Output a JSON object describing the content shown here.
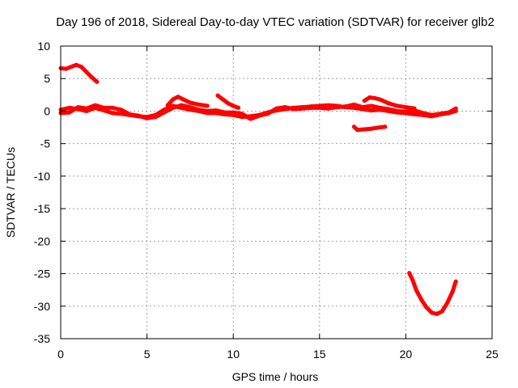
{
  "chart_data": {
    "type": "scatter",
    "title": "Day 196 of 2018, Sidereal Day-to-day VTEC variation (SDTVAR) for receiver glb2",
    "xlabel": "GPS time / hours",
    "ylabel": "SDTVAR / TECUs",
    "xlim": [
      0,
      25
    ],
    "ylim": [
      -35,
      10
    ],
    "xticks": [
      0,
      5,
      10,
      15,
      20,
      25
    ],
    "yticks": [
      -35,
      -30,
      -25,
      -20,
      -15,
      -10,
      -5,
      0,
      5,
      10
    ],
    "grid": true,
    "legend": "none",
    "color": "#ff0000",
    "series": [
      {
        "name": "trace-1",
        "points": [
          [
            0.0,
            6.6
          ],
          [
            0.3,
            6.5
          ],
          [
            0.6,
            6.8
          ],
          [
            0.9,
            7.1
          ],
          [
            1.2,
            6.8
          ],
          [
            1.5,
            6.0
          ],
          [
            1.8,
            5.2
          ],
          [
            2.1,
            4.5
          ]
        ]
      },
      {
        "name": "trace-2",
        "points": [
          [
            0.0,
            0.2
          ],
          [
            0.5,
            0.5
          ],
          [
            1.0,
            0.3
          ],
          [
            1.5,
            0.0
          ],
          [
            2.0,
            0.5
          ],
          [
            2.5,
            0.1
          ],
          [
            3.0,
            -0.3
          ],
          [
            3.5,
            -0.4
          ],
          [
            4.0,
            -0.6
          ],
          [
            4.5,
            -0.8
          ],
          [
            5.0,
            -0.9
          ],
          [
            5.5,
            -0.6
          ],
          [
            6.0,
            0.2
          ],
          [
            6.5,
            0.8
          ],
          [
            7.0,
            0.5
          ],
          [
            7.5,
            0.2
          ],
          [
            8.0,
            0.0
          ],
          [
            8.5,
            -0.3
          ],
          [
            9.0,
            -0.3
          ],
          [
            9.5,
            -0.5
          ],
          [
            10.0,
            -0.6
          ],
          [
            10.5,
            -0.9
          ],
          [
            11.0,
            -0.8
          ],
          [
            11.5,
            -0.6
          ],
          [
            12.0,
            -0.2
          ],
          [
            12.5,
            0.1
          ],
          [
            13.0,
            0.3
          ],
          [
            13.5,
            0.5
          ],
          [
            14.0,
            0.6
          ],
          [
            14.5,
            0.7
          ],
          [
            15.0,
            0.8
          ],
          [
            15.5,
            0.9
          ],
          [
            16.0,
            0.8
          ],
          [
            16.5,
            0.6
          ],
          [
            17.0,
            0.5
          ],
          [
            17.5,
            0.3
          ],
          [
            18.0,
            0.1
          ],
          [
            18.5,
            0.2
          ],
          [
            19.0,
            0.0
          ],
          [
            19.5,
            -0.2
          ],
          [
            20.0,
            -0.3
          ],
          [
            20.5,
            -0.5
          ],
          [
            21.0,
            -0.6
          ],
          [
            21.5,
            -0.8
          ],
          [
            22.0,
            -0.5
          ],
          [
            22.5,
            -0.3
          ],
          [
            22.9,
            0.0
          ]
        ]
      },
      {
        "name": "trace-3",
        "points": [
          [
            0.0,
            -0.3
          ],
          [
            0.5,
            -0.2
          ],
          [
            1.0,
            0.6
          ],
          [
            1.5,
            0.4
          ],
          [
            2.0,
            0.9
          ],
          [
            2.5,
            0.5
          ],
          [
            3.0,
            0.5
          ],
          [
            3.5,
            0.2
          ],
          [
            4.0,
            -0.5
          ],
          [
            4.5,
            -0.7
          ],
          [
            5.0,
            -1.1
          ],
          [
            5.5,
            -0.9
          ],
          [
            6.0,
            -0.2
          ],
          [
            6.5,
            0.5
          ],
          [
            7.0,
            0.9
          ],
          [
            7.5,
            0.6
          ],
          [
            8.0,
            0.2
          ],
          [
            8.5,
            0.0
          ],
          [
            9.0,
            0.1
          ],
          [
            9.5,
            -0.2
          ],
          [
            10.0,
            -0.2
          ],
          [
            10.5,
            -0.4
          ],
          [
            11.0,
            -1.2
          ],
          [
            11.5,
            -0.7
          ],
          [
            12.0,
            -0.4
          ],
          [
            12.5,
            0.4
          ],
          [
            13.0,
            0.6
          ],
          [
            13.5,
            0.3
          ],
          [
            14.0,
            0.4
          ],
          [
            14.5,
            0.5
          ],
          [
            15.0,
            0.5
          ],
          [
            15.5,
            0.4
          ],
          [
            16.0,
            0.6
          ],
          [
            16.5,
            0.7
          ],
          [
            17.0,
            1.0
          ],
          [
            17.5,
            0.6
          ],
          [
            18.0,
            0.8
          ],
          [
            18.5,
            0.5
          ],
          [
            19.0,
            0.3
          ],
          [
            19.5,
            0.0
          ],
          [
            20.0,
            -0.1
          ],
          [
            20.5,
            0.1
          ],
          [
            21.0,
            -0.3
          ],
          [
            21.5,
            -0.6
          ],
          [
            22.0,
            -0.4
          ],
          [
            22.5,
            -0.2
          ],
          [
            22.9,
            0.4
          ]
        ]
      },
      {
        "name": "trace-4",
        "points": [
          [
            6.2,
            0.9
          ],
          [
            6.5,
            1.8
          ],
          [
            6.8,
            2.2
          ],
          [
            7.1,
            1.8
          ],
          [
            7.5,
            1.3
          ],
          [
            8.0,
            1.0
          ],
          [
            8.5,
            0.8
          ]
        ]
      },
      {
        "name": "trace-5",
        "points": [
          [
            9.1,
            2.4
          ],
          [
            9.4,
            1.8
          ],
          [
            9.7,
            1.2
          ],
          [
            10.0,
            0.8
          ],
          [
            10.3,
            0.5
          ]
        ]
      },
      {
        "name": "trace-6",
        "points": [
          [
            17.6,
            1.6
          ],
          [
            17.9,
            2.1
          ],
          [
            18.2,
            2.0
          ],
          [
            18.5,
            1.8
          ],
          [
            19.0,
            1.2
          ],
          [
            19.5,
            0.8
          ],
          [
            20.0,
            0.6
          ],
          [
            20.5,
            0.4
          ]
        ]
      },
      {
        "name": "trace-7",
        "points": [
          [
            17.0,
            -2.4
          ],
          [
            17.2,
            -2.9
          ],
          [
            17.6,
            -2.8
          ],
          [
            18.0,
            -2.7
          ],
          [
            18.5,
            -2.5
          ],
          [
            18.8,
            -2.4
          ]
        ]
      },
      {
        "name": "trace-8",
        "points": [
          [
            20.2,
            -24.9
          ],
          [
            20.4,
            -26.0
          ],
          [
            20.6,
            -27.5
          ],
          [
            20.9,
            -29.0
          ],
          [
            21.2,
            -30.2
          ],
          [
            21.5,
            -31.0
          ],
          [
            21.8,
            -31.2
          ],
          [
            22.1,
            -30.8
          ],
          [
            22.4,
            -29.5
          ],
          [
            22.7,
            -27.8
          ],
          [
            22.9,
            -26.2
          ]
        ]
      }
    ]
  }
}
